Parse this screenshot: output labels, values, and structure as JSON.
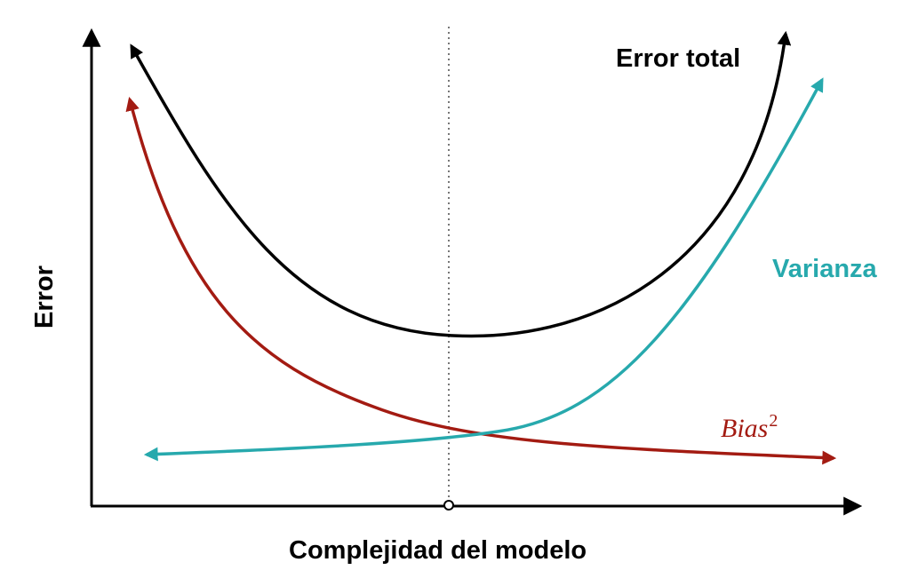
{
  "diagram": {
    "xlabel": "Complejidad del modelo",
    "ylabel": "Error",
    "curves": {
      "total": {
        "label": "Error total",
        "color": "#000000"
      },
      "variance": {
        "label": "Varianza",
        "color": "#27a9ad"
      },
      "bias": {
        "label": "Bias",
        "exponent": "2",
        "color": "#a31b12"
      }
    },
    "optimum_marker_color": "#777777"
  }
}
